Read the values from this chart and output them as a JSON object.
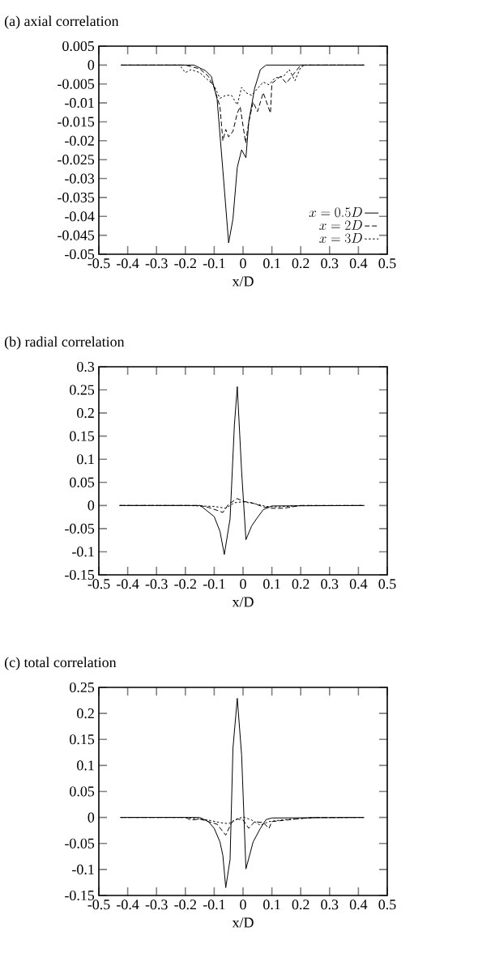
{
  "chart_data": [
    {
      "type": "line",
      "title": "(a) axial correlation",
      "xlabel": "x/D",
      "xlim": [
        -0.5,
        0.5
      ],
      "xticks": [
        -0.5,
        -0.4,
        -0.3,
        -0.2,
        -0.1,
        0,
        0.1,
        0.2,
        0.3,
        0.4,
        0.5
      ],
      "ylim": [
        -0.05,
        0.005
      ],
      "yticks": [
        0.005,
        0,
        -0.005,
        -0.01,
        -0.015,
        -0.02,
        -0.025,
        -0.03,
        -0.035,
        -0.04,
        -0.045,
        -0.05
      ],
      "grid": false,
      "legend": "bottom right",
      "marker": "none",
      "series": [
        {
          "name": "x = 0.5D",
          "color": "#000000",
          "line_style": "solid",
          "x": [
            -0.423,
            -0.17,
            -0.13,
            -0.11,
            -0.09,
            -0.07,
            -0.05,
            -0.035,
            -0.02,
            -0.005,
            0.01,
            0.02,
            0.04,
            0.06,
            0.08,
            0.42
          ],
          "values": [
            0,
            0,
            -0.0015,
            -0.003,
            -0.009,
            -0.0278,
            -0.047,
            -0.0407,
            -0.027,
            -0.0224,
            -0.0245,
            -0.0149,
            -0.0062,
            -0.0012,
            0,
            0
          ]
        },
        {
          "name": "x = 2D",
          "color": "#000000",
          "line_style": "dashed",
          "x": [
            -0.423,
            -0.2,
            -0.15,
            -0.12,
            -0.1,
            -0.08,
            -0.07,
            -0.06,
            -0.05,
            -0.035,
            -0.02,
            -0.01,
            0.009,
            0.02,
            0.035,
            0.05,
            0.07,
            0.095,
            0.1,
            0.13,
            0.15,
            0.18,
            0.2,
            0.42
          ],
          "values": [
            0,
            0,
            -0.001,
            -0.003,
            -0.006,
            -0.011,
            -0.02,
            -0.017,
            -0.019,
            -0.0175,
            -0.0127,
            -0.011,
            -0.0206,
            -0.015,
            -0.0098,
            -0.0123,
            -0.0073,
            -0.0127,
            -0.0048,
            -0.003,
            -0.0048,
            -0.0019,
            0,
            0
          ]
        },
        {
          "name": "x = 3D",
          "color": "#000000",
          "line_style": "dotted",
          "x": [
            -0.423,
            -0.22,
            -0.2,
            -0.18,
            -0.15,
            -0.1,
            -0.08,
            -0.06,
            -0.04,
            -0.02,
            -0.005,
            0.01,
            0.03,
            0.05,
            0.07,
            0.09,
            0.11,
            0.14,
            0.16,
            0.18,
            0.2,
            0.22,
            0.42
          ],
          "values": [
            0,
            0,
            -0.002,
            -0.0012,
            -0.002,
            -0.0055,
            -0.0088,
            -0.008,
            -0.008,
            -0.0105,
            -0.0059,
            -0.0073,
            -0.008,
            -0.0062,
            -0.0045,
            -0.0052,
            -0.0034,
            -0.003,
            -0.0012,
            -0.0041,
            -0.0005,
            0,
            0
          ]
        }
      ]
    },
    {
      "type": "line",
      "title": "(b) radial correlation",
      "xlabel": "x/D",
      "xlim": [
        -0.5,
        0.5
      ],
      "xticks": [
        -0.5,
        -0.4,
        -0.3,
        -0.2,
        -0.1,
        0,
        0.1,
        0.2,
        0.3,
        0.4,
        0.5
      ],
      "ylim": [
        -0.15,
        0.3
      ],
      "yticks": [
        0.3,
        0.25,
        0.2,
        0.15,
        0.1,
        0.05,
        0,
        -0.05,
        -0.1,
        -0.15
      ],
      "grid": false,
      "legend": false,
      "marker": "none",
      "series": [
        {
          "color": "#000000",
          "line_style": "solid",
          "x": [
            -0.428,
            -0.15,
            -0.14,
            -0.1,
            -0.08,
            -0.065,
            -0.045,
            -0.03,
            -0.02,
            -0.005,
            0.01,
            0.03,
            0.05,
            0.07,
            0.1,
            0.42
          ],
          "values": [
            0,
            0,
            -0.004,
            -0.024,
            -0.056,
            -0.106,
            -0.029,
            0.174,
            0.257,
            0.074,
            -0.074,
            -0.044,
            -0.026,
            -0.009,
            -0.001,
            0
          ]
        },
        {
          "color": "#000000",
          "line_style": "dashed",
          "x": [
            -0.428,
            -0.15,
            -0.12,
            -0.07,
            -0.05,
            -0.02,
            0,
            0.03,
            0.07,
            0.1,
            0.14,
            0.2,
            0.42
          ],
          "values": [
            0,
            0,
            -0.004,
            -0.015,
            0.003,
            0.015,
            0.009,
            0.006,
            -0.003,
            -0.006,
            -0.006,
            0,
            0
          ]
        },
        {
          "color": "#000000",
          "line_style": "dotted",
          "x": [
            -0.428,
            -0.2,
            -0.1,
            -0.06,
            -0.03,
            0,
            0.04,
            0.08,
            0.12,
            0.2,
            0.42
          ],
          "values": [
            0,
            0,
            -0.002,
            -0.006,
            0.006,
            0.008,
            0.004,
            -0.002,
            -0.003,
            0,
            0
          ]
        }
      ]
    },
    {
      "type": "line",
      "title": "(c) total correlation",
      "xlabel": "x/D",
      "xlim": [
        -0.5,
        0.5
      ],
      "xticks": [
        -0.5,
        -0.4,
        -0.3,
        -0.2,
        -0.1,
        0,
        0.1,
        0.2,
        0.3,
        0.4,
        0.5
      ],
      "ylim": [
        -0.15,
        0.25
      ],
      "yticks": [
        0.25,
        0.2,
        0.15,
        0.1,
        0.05,
        0,
        -0.05,
        -0.1,
        -0.15
      ],
      "grid": false,
      "legend": false,
      "marker": "none",
      "series": [
        {
          "color": "#000000",
          "line_style": "solid",
          "x": [
            -0.425,
            -0.15,
            -0.12,
            -0.1,
            -0.08,
            -0.07,
            -0.06,
            -0.045,
            -0.035,
            -0.02,
            -0.005,
            0.01,
            0.035,
            0.06,
            0.08,
            0.1,
            0.42
          ],
          "values": [
            0,
            0,
            -0.008,
            -0.021,
            -0.047,
            -0.073,
            -0.135,
            -0.081,
            0.133,
            0.229,
            0.12,
            -0.099,
            -0.047,
            -0.021,
            -0.004,
            -0.001,
            0
          ]
        },
        {
          "color": "#000000",
          "line_style": "dashed",
          "x": [
            -0.425,
            -0.2,
            -0.18,
            -0.15,
            -0.12,
            -0.09,
            -0.06,
            -0.04,
            -0.02,
            0,
            0.02,
            0.04,
            0.07,
            0.09,
            0.1,
            0.15,
            0.2,
            0.25,
            0.42
          ],
          "values": [
            0,
            0,
            -0.005,
            -0.003,
            -0.008,
            -0.013,
            -0.034,
            -0.01,
            -0.003,
            -0.005,
            -0.021,
            -0.008,
            -0.01,
            -0.021,
            -0.008,
            -0.005,
            -0.002,
            0,
            0
          ]
        },
        {
          "color": "#000000",
          "line_style": "dotted",
          "x": [
            -0.425,
            -0.2,
            -0.12,
            -0.08,
            -0.05,
            -0.03,
            0,
            0.03,
            0.06,
            0.09,
            0.13,
            0.2,
            0.25,
            0.42
          ],
          "values": [
            0,
            0,
            -0.005,
            -0.01,
            -0.012,
            -0.005,
            0.001,
            -0.005,
            -0.015,
            -0.008,
            -0.005,
            -0.002,
            0,
            0
          ]
        }
      ]
    }
  ]
}
